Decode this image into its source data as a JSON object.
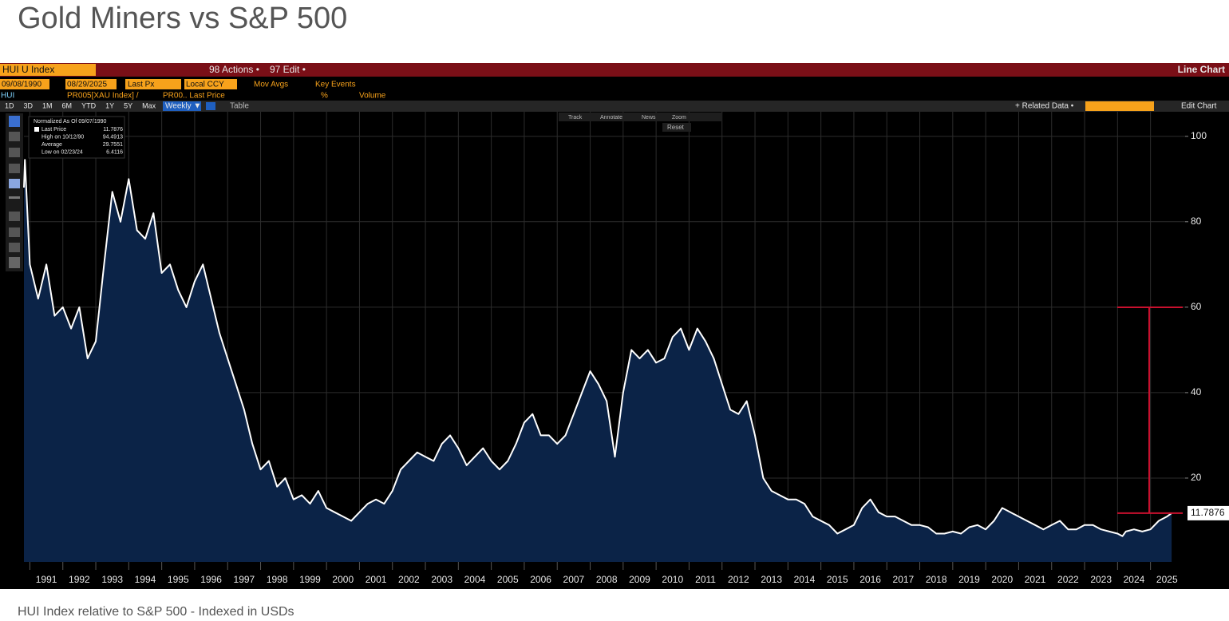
{
  "page": {
    "title": "Gold Miners vs S&P 500",
    "caption": "HUI Index relative to S&P 500 - Indexed in USDs"
  },
  "terminal": {
    "ticker": "HUI U Index",
    "actions": "98 Actions •",
    "edit": "97 Edit •",
    "chart_kind": "Line Chart",
    "start_date": "09/08/1990",
    "end_date": "08/29/2025",
    "field": "Last Px",
    "currency": "Local CCY",
    "mov_avgs": "Mov Avgs",
    "key_events": "Key Events",
    "security": "HUI",
    "formula": "PR005[XAU Index] /",
    "formula_field": "PR00.. Last Price",
    "unit": "%",
    "volume": "Volume",
    "periods": [
      "1D",
      "3D",
      "1M",
      "6M",
      "YTD",
      "1Y",
      "5Y",
      "Max"
    ],
    "frequency": "Weekly ▼",
    "table": "Table",
    "related_data": "+ Related Data •",
    "edit_chart": "Edit Chart",
    "tools": [
      "Track",
      "Annotate",
      "News",
      "Zoom"
    ],
    "reset": "Reset"
  },
  "chart_data": {
    "type": "area",
    "note": "Normalized As Of 09/07/1990",
    "stats": [
      {
        "label": "Last Price",
        "value": 11.7876
      },
      {
        "label": "High on 10/12/90",
        "value": 94.4913
      },
      {
        "label": "Average",
        "value": 29.7551
      },
      {
        "label": "Low on 02/23/24",
        "value": 6.4116
      }
    ],
    "color": "#ffffff",
    "fill": "#0b2347",
    "x": [
      1990.82,
      1990.85,
      1991,
      1991.25,
      1991.5,
      1991.75,
      1992,
      1992.25,
      1992.5,
      1992.75,
      1993,
      1993.25,
      1993.5,
      1993.75,
      1994,
      1994.25,
      1994.5,
      1994.75,
      1995,
      1995.25,
      1995.5,
      1995.75,
      1996,
      1996.25,
      1996.5,
      1996.75,
      1997,
      1997.25,
      1997.5,
      1997.75,
      1998,
      1998.25,
      1998.5,
      1998.75,
      1999,
      1999.25,
      1999.5,
      1999.75,
      2000,
      2000.25,
      2000.5,
      2000.75,
      2001,
      2001.25,
      2001.5,
      2001.75,
      2002,
      2002.25,
      2002.5,
      2002.75,
      2003,
      2003.25,
      2003.5,
      2003.75,
      2004,
      2004.25,
      2004.5,
      2004.75,
      2005,
      2005.25,
      2005.5,
      2005.75,
      2006,
      2006.25,
      2006.5,
      2006.75,
      2007,
      2007.25,
      2007.5,
      2007.75,
      2008,
      2008.25,
      2008.5,
      2008.75,
      2009,
      2009.25,
      2009.5,
      2009.75,
      2010,
      2010.25,
      2010.5,
      2010.75,
      2011,
      2011.25,
      2011.5,
      2011.75,
      2012,
      2012.25,
      2012.5,
      2012.75,
      2013,
      2013.25,
      2013.5,
      2013.75,
      2014,
      2014.25,
      2014.5,
      2014.75,
      2015,
      2015.25,
      2015.5,
      2015.75,
      2016,
      2016.25,
      2016.5,
      2016.75,
      2017,
      2017.25,
      2017.5,
      2017.75,
      2018,
      2018.25,
      2018.5,
      2018.75,
      2019,
      2019.25,
      2019.5,
      2019.75,
      2020,
      2020.25,
      2020.5,
      2020.75,
      2021,
      2021.25,
      2021.5,
      2021.75,
      2022,
      2022.25,
      2022.5,
      2022.75,
      2023,
      2023.25,
      2023.5,
      2023.75,
      2024,
      2024.15,
      2024.25,
      2024.5,
      2024.75,
      2025,
      2025.25,
      2025.5,
      2025.64
    ],
    "values": [
      88,
      94.4913,
      70,
      62,
      70,
      58,
      60,
      55,
      60,
      48,
      52,
      70,
      87,
      80,
      90,
      78,
      76,
      82,
      68,
      70,
      64,
      60,
      66,
      70,
      62,
      54,
      48,
      42,
      36,
      28,
      22,
      24,
      18,
      20,
      15,
      16,
      14,
      17,
      13,
      12,
      11,
      10,
      12,
      14,
      15,
      14,
      17,
      22,
      24,
      26,
      25,
      24,
      28,
      30,
      27,
      23,
      25,
      27,
      24,
      22,
      24,
      28,
      33,
      35,
      30,
      30,
      28,
      30,
      35,
      40,
      45,
      42,
      38,
      25,
      40,
      50,
      48,
      50,
      47,
      48,
      53,
      55,
      50,
      55,
      52,
      48,
      42,
      36,
      35,
      38,
      30,
      20,
      17,
      16,
      15,
      15,
      14,
      11,
      10,
      9,
      7,
      8,
      9,
      13,
      15,
      12,
      11,
      11,
      10,
      9,
      9,
      8.5,
      7,
      7,
      7.5,
      7,
      8.5,
      9,
      8,
      10,
      13,
      12,
      11,
      10,
      9,
      8,
      9,
      10,
      8,
      8,
      9,
      9,
      8,
      7.5,
      7,
      6.4116,
      7.5,
      8,
      7.5,
      8,
      10,
      11,
      11.7876
    ],
    "xlim": [
      1990.82,
      2026.05
    ],
    "xticks": [
      1991,
      1992,
      1993,
      1994,
      1995,
      1996,
      1997,
      1998,
      1999,
      2000,
      2001,
      2002,
      2003,
      2004,
      2005,
      2006,
      2007,
      2008,
      2009,
      2010,
      2011,
      2012,
      2013,
      2014,
      2015,
      2016,
      2017,
      2018,
      2019,
      2020,
      2021,
      2022,
      2023,
      2024,
      2025
    ],
    "ylim": [
      0,
      105
    ],
    "yticks": [
      20,
      40,
      60,
      80,
      100
    ],
    "grid": true
  }
}
